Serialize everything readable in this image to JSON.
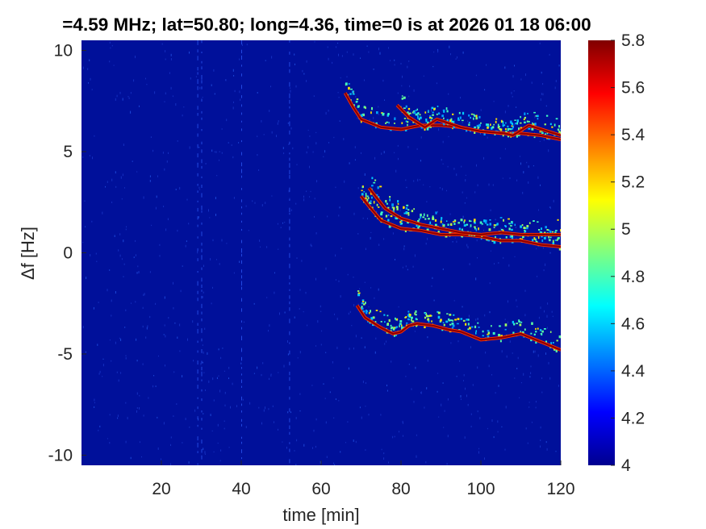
{
  "chart_data": {
    "type": "heatmap",
    "title": "=4.59 MHz;  lat=50.80; long=4.36, time=0 is at 2026 01 18 06:00",
    "xlabel": "time [min]",
    "ylabel": "Δf [Hz]",
    "xlim": [
      0,
      120
    ],
    "ylim": [
      -10.5,
      10.5
    ],
    "xticks": [
      "20",
      "40",
      "60",
      "80",
      "100",
      "120"
    ],
    "yticks": [
      "10",
      "5",
      "0",
      "-5",
      "-10"
    ],
    "xtick_values": [
      20,
      40,
      60,
      80,
      100,
      120
    ],
    "ytick_values": [
      10,
      5,
      0,
      -5,
      -10
    ],
    "colorbar": {
      "range": [
        4,
        5.8
      ],
      "ticks": [
        "5.8",
        "5.6",
        "5.4",
        "5.2",
        "5",
        "4.8",
        "4.6",
        "4.4",
        "4.2",
        "4"
      ],
      "tick_values": [
        5.8,
        5.6,
        5.4,
        5.2,
        5.0,
        4.8,
        4.6,
        4.4,
        4.2,
        4.0
      ],
      "colormap": "jet"
    },
    "background_color": "#00109a",
    "traces": [
      {
        "band": "upper",
        "points": [
          [
            66,
            7.9
          ],
          [
            68,
            7.2
          ],
          [
            70,
            6.6
          ],
          [
            75,
            6.2
          ],
          [
            80,
            6.1
          ],
          [
            85,
            6.3
          ],
          [
            90,
            6.3
          ],
          [
            95,
            6.2
          ],
          [
            100,
            6.0
          ],
          [
            105,
            5.9
          ],
          [
            110,
            5.9
          ],
          [
            115,
            5.8
          ],
          [
            120,
            5.6
          ]
        ]
      },
      {
        "band": "upper-secondary",
        "points": [
          [
            79,
            7.3
          ],
          [
            82,
            6.7
          ],
          [
            86,
            6.2
          ],
          [
            89,
            6.6
          ],
          [
            95,
            6.2
          ],
          [
            100,
            6.0
          ],
          [
            106,
            5.9
          ],
          [
            108,
            5.8
          ],
          [
            112,
            6.3
          ],
          [
            120,
            5.8
          ]
        ]
      },
      {
        "band": "middle",
        "points": [
          [
            70,
            2.8
          ],
          [
            72,
            2.3
          ],
          [
            75,
            1.6
          ],
          [
            80,
            1.2
          ],
          [
            85,
            1.1
          ],
          [
            90,
            0.9
          ],
          [
            95,
            0.9
          ],
          [
            100,
            0.8
          ],
          [
            105,
            0.6
          ],
          [
            110,
            0.6
          ],
          [
            115,
            0.4
          ],
          [
            120,
            0.3
          ]
        ]
      },
      {
        "band": "middle-secondary",
        "points": [
          [
            72,
            3.2
          ],
          [
            76,
            2.2
          ],
          [
            80,
            1.7
          ],
          [
            85,
            1.4
          ],
          [
            90,
            1.2
          ],
          [
            95,
            1.0
          ],
          [
            100,
            0.9
          ],
          [
            105,
            1.0
          ],
          [
            110,
            0.9
          ],
          [
            115,
            0.9
          ],
          [
            120,
            0.9
          ]
        ]
      },
      {
        "band": "lower",
        "points": [
          [
            69,
            -2.6
          ],
          [
            71,
            -3.2
          ],
          [
            75,
            -3.7
          ],
          [
            78,
            -4.0
          ],
          [
            80,
            -3.9
          ],
          [
            82,
            -3.6
          ],
          [
            84,
            -3.5
          ],
          [
            88,
            -3.6
          ],
          [
            92,
            -3.8
          ],
          [
            95,
            -3.9
          ],
          [
            100,
            -4.3
          ],
          [
            105,
            -4.2
          ],
          [
            110,
            -4.0
          ],
          [
            115,
            -4.4
          ],
          [
            120,
            -4.8
          ]
        ]
      }
    ]
  }
}
